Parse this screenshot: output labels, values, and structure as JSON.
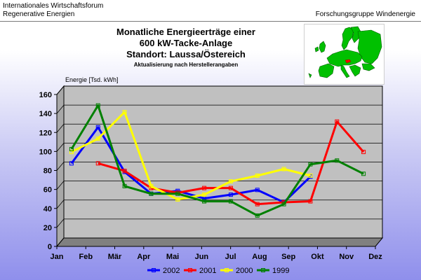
{
  "header": {
    "left_line1": "Internationales Wirtschaftsforum",
    "left_line2": "Regenerative Energien",
    "right": "Forschungsgruppe Windenergie"
  },
  "map": {
    "icon": "europe-map-icon",
    "land_color": "#00c000",
    "highlight_color": "#ff0000"
  },
  "chart_data": {
    "type": "line",
    "title": [
      "Monatliche Energieerträge einer",
      "600 kW-Tacke-Anlage",
      "Standort: Laussa/Östereich"
    ],
    "subtitle": "Aktualisierung nach Herstellerangaben",
    "ylabel": "Energie [Tsd. kWh]",
    "xlabel": "",
    "categories": [
      "Jan",
      "Feb",
      "Mär",
      "Apr",
      "Mai",
      "Jun",
      "Jul",
      "Aug",
      "Sep",
      "Okt",
      "Nov",
      "Dez"
    ],
    "ylim": [
      0,
      160
    ],
    "yticks": [
      0,
      20,
      40,
      60,
      80,
      100,
      120,
      140,
      160
    ],
    "grid": true,
    "legend_position": "bottom",
    "series": [
      {
        "name": "2002",
        "color": "#0000ff",
        "values": [
          86,
          124,
          77,
          54,
          57,
          49,
          53,
          58,
          45,
          72,
          null,
          null
        ]
      },
      {
        "name": "2001",
        "color": "#ff0000",
        "values": [
          null,
          86,
          78,
          60,
          55,
          60,
          60,
          43,
          45,
          46,
          130,
          98
        ]
      },
      {
        "name": "2000",
        "color": "#ffff00",
        "values": [
          98,
          112,
          140,
          62,
          48,
          53,
          67,
          73,
          80,
          73,
          null,
          null
        ]
      },
      {
        "name": "1999",
        "color": "#008000",
        "values": [
          101,
          147,
          62,
          54,
          54,
          46,
          46,
          31,
          43,
          85,
          89,
          75
        ]
      }
    ]
  }
}
